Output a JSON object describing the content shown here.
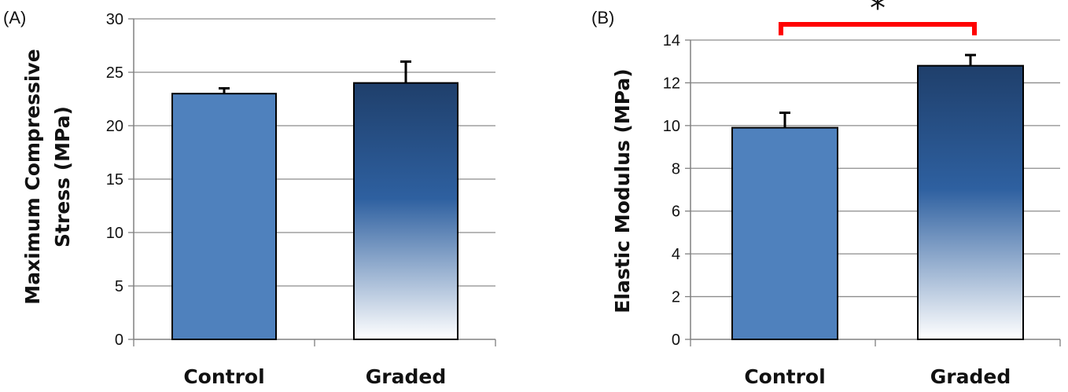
{
  "chart_data": [
    {
      "type": "bar",
      "panel_label": "(A)",
      "categories": [
        "Control",
        "Graded"
      ],
      "values": [
        23,
        24
      ],
      "errors": [
        0.5,
        2.0
      ],
      "ylabel_lines": [
        "Maximum Compressive",
        "Stress (MPa)"
      ],
      "ylim": [
        0,
        30
      ],
      "yticks": [
        0,
        5,
        10,
        15,
        20,
        25,
        30
      ],
      "grid": true,
      "bar_styles": [
        "solid",
        "gradient"
      ]
    },
    {
      "type": "bar",
      "panel_label": "(B)",
      "categories": [
        "Control",
        "Graded"
      ],
      "values": [
        9.9,
        12.8
      ],
      "errors": [
        0.7,
        0.5
      ],
      "ylabel_lines": [
        "Elastic Modulus (MPa)"
      ],
      "ylim": [
        0,
        14
      ],
      "yticks": [
        0,
        2,
        4,
        6,
        8,
        10,
        12,
        14
      ],
      "grid": true,
      "bar_styles": [
        "solid",
        "gradient"
      ],
      "significance": {
        "between": [
          0,
          1
        ],
        "symbol": "*",
        "color": "#ff0000"
      }
    }
  ],
  "colors": {
    "solid_bar": "#4f81bd",
    "gradient_top": "#1f3f6b",
    "gradient_mid": "#2e60a0",
    "gradient_bottom": "#ffffff",
    "grid": "#8c8c8c",
    "axis": "#808080"
  }
}
